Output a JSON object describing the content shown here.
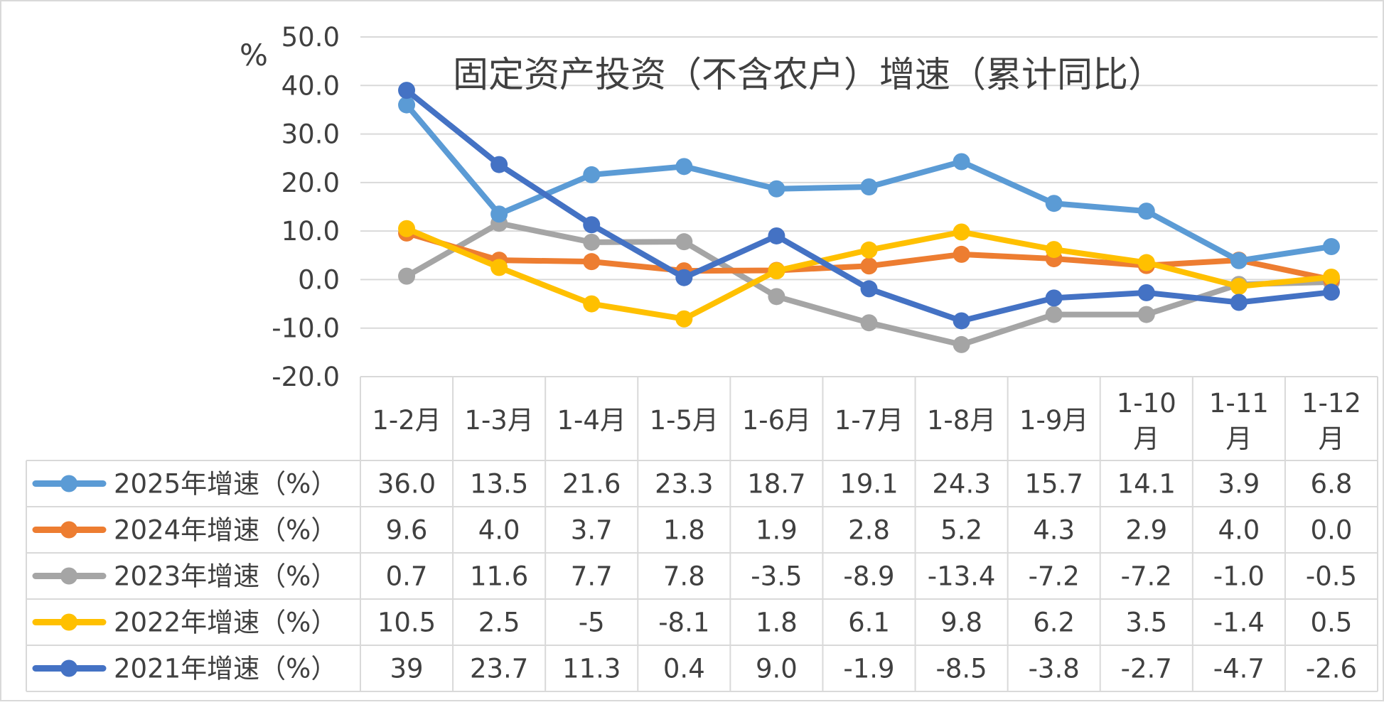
{
  "chart_data": {
    "type": "line",
    "title": "固定资产投资（不含农户）增速（累计同比）",
    "ylabel": "%",
    "ylim": [
      -20,
      50
    ],
    "yticks": [
      "50.0",
      "40.0",
      "30.0",
      "20.0",
      "10.0",
      "0.0",
      "-10.0",
      "-20.0"
    ],
    "ytick_values": [
      50,
      40,
      30,
      20,
      10,
      0,
      -10,
      -20
    ],
    "grid": true,
    "legend_placement": "bottom data table",
    "categories": [
      "1-2月",
      "1-3月",
      "1-4月",
      "1-5月",
      "1-6月",
      "1-7月",
      "1-8月",
      "1-9月",
      "1-10月",
      "1-11月",
      "1-12月"
    ],
    "series": [
      {
        "name": "2025年增速（%）",
        "color": "#5B9BD5",
        "values": [
          36.0,
          13.5,
          21.6,
          23.3,
          18.7,
          19.1,
          24.3,
          15.7,
          14.1,
          3.9,
          6.8
        ],
        "labels": [
          "36.0",
          "13.5",
          "21.6",
          "23.3",
          "18.7",
          "19.1",
          "24.3",
          "15.7",
          "14.1",
          "3.9",
          "6.8"
        ]
      },
      {
        "name": "2024年增速（%）",
        "color": "#ED7D31",
        "values": [
          9.6,
          4.0,
          3.7,
          1.8,
          1.9,
          2.8,
          5.2,
          4.3,
          2.9,
          4.0,
          0.0
        ],
        "labels": [
          "9.6",
          "4.0",
          "3.7",
          "1.8",
          "1.9",
          "2.8",
          "5.2",
          "4.3",
          "2.9",
          "4.0",
          "0.0"
        ]
      },
      {
        "name": "2023年增速（%）",
        "color": "#A5A5A5",
        "values": [
          0.7,
          11.6,
          7.7,
          7.8,
          -3.5,
          -8.9,
          -13.4,
          -7.2,
          -7.2,
          -1.0,
          -0.5
        ],
        "labels": [
          "0.7",
          "11.6",
          "7.7",
          "7.8",
          "-3.5",
          "-8.9",
          "-13.4",
          "-7.2",
          "-7.2",
          "-1.0",
          "-0.5"
        ]
      },
      {
        "name": "2022年增速（%）",
        "color": "#FFC000",
        "values": [
          10.5,
          2.5,
          -5,
          -8.1,
          1.8,
          6.1,
          9.8,
          6.2,
          3.5,
          -1.4,
          0.5
        ],
        "labels": [
          "10.5",
          "2.5",
          "-5",
          "-8.1",
          "1.8",
          "6.1",
          "9.8",
          "6.2",
          "3.5",
          "-1.4",
          "0.5"
        ]
      },
      {
        "name": "2021年增速（%）",
        "color": "#4472C4",
        "values": [
          39,
          23.7,
          11.3,
          0.4,
          9.0,
          -1.9,
          -8.5,
          -3.8,
          -2.7,
          -4.7,
          -2.6
        ],
        "labels": [
          "39",
          "23.7",
          "11.3",
          "0.4",
          "9.0",
          "-1.9",
          "-8.5",
          "-3.8",
          "-2.7",
          "-4.7",
          "-2.6"
        ]
      }
    ]
  }
}
